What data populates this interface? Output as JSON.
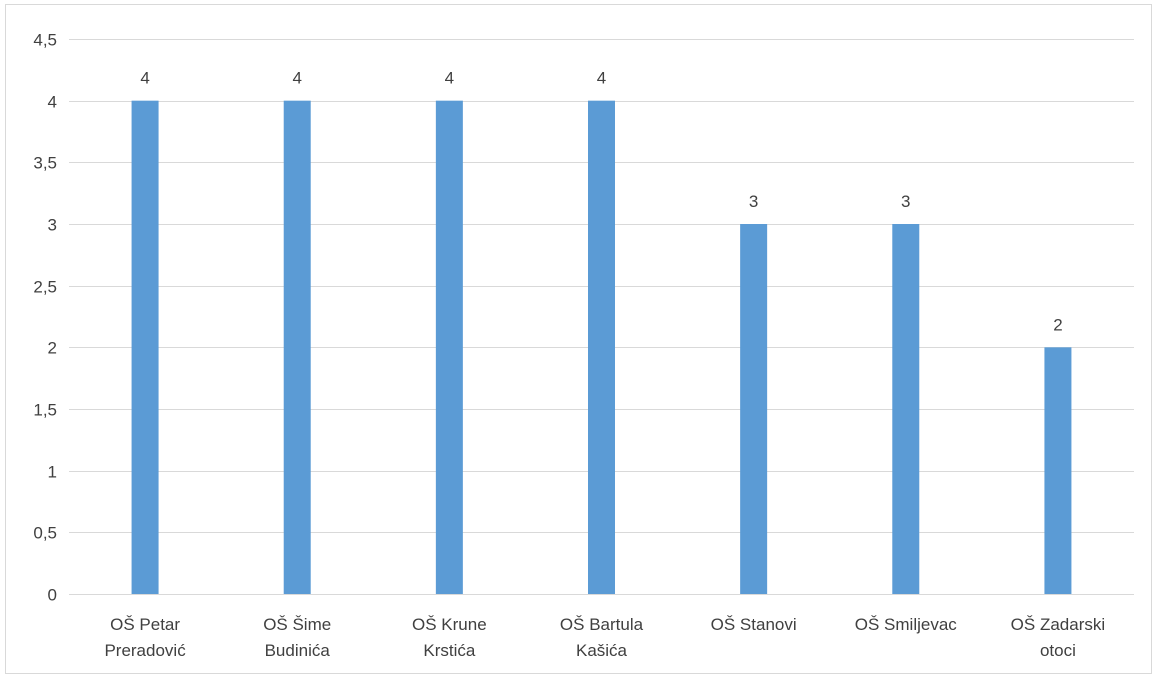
{
  "chart_data": {
    "type": "bar",
    "title": "",
    "xlabel": "",
    "ylabel": "",
    "categories": [
      [
        "OŠ Petar",
        "Preradović"
      ],
      [
        "OŠ Šime",
        "Budinića"
      ],
      [
        "OŠ Krune",
        "Krstića"
      ],
      [
        "OŠ Bartula",
        "Kašića"
      ],
      [
        "OŠ Stanovi"
      ],
      [
        "OŠ Smiljevac"
      ],
      [
        "OŠ Zadarski",
        "otoci"
      ]
    ],
    "values": [
      4,
      4,
      4,
      4,
      3,
      3,
      2
    ],
    "data_labels": [
      "4",
      "4",
      "4",
      "4",
      "3",
      "3",
      "2"
    ],
    "ylim": [
      0,
      4.5
    ],
    "y_ticks": [
      {
        "value": 0,
        "label": "0"
      },
      {
        "value": 0.5,
        "label": "0,5"
      },
      {
        "value": 1,
        "label": "1"
      },
      {
        "value": 1.5,
        "label": "1,5"
      },
      {
        "value": 2,
        "label": "2"
      },
      {
        "value": 2.5,
        "label": "2,5"
      },
      {
        "value": 3,
        "label": "3"
      },
      {
        "value": 3.5,
        "label": "3,5"
      },
      {
        "value": 4,
        "label": "4"
      },
      {
        "value": 4.5,
        "label": "4,5"
      }
    ],
    "grid": true,
    "legend": "none",
    "colors": {
      "bar": "#5b9bd5",
      "grid": "#d9d9d9",
      "text": "#404040"
    }
  }
}
